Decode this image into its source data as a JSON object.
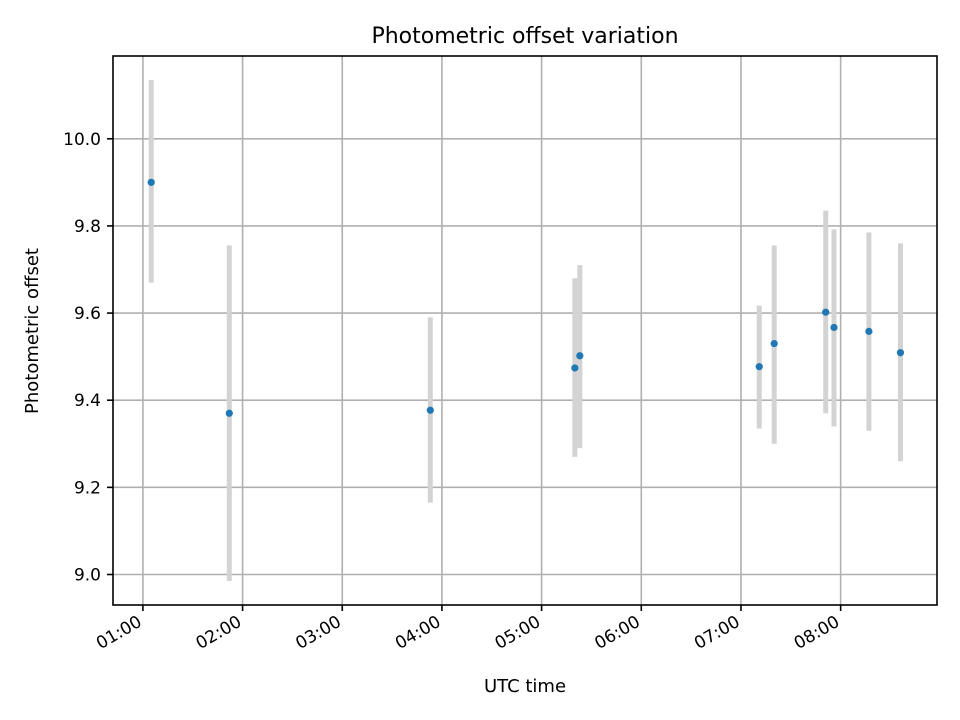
{
  "chart_data": {
    "type": "scatter",
    "title": "Photometric offset variation",
    "xlabel": "UTC time",
    "ylabel": "Photometric offset",
    "x_ticks": [
      "01:00",
      "02:00",
      "03:00",
      "04:00",
      "05:00",
      "06:00",
      "07:00",
      "08:00"
    ],
    "y_ticks": [
      "9.0",
      "9.2",
      "9.4",
      "9.6",
      "9.8",
      "10.0"
    ],
    "xlim": [
      "00:42",
      "08:58"
    ],
    "ylim": [
      8.93,
      10.19
    ],
    "grid": true,
    "error_bars": true,
    "colors": {
      "points": "#1f77b4",
      "error_bars": "#d3d3d3",
      "grid": "#b0b0b0"
    },
    "points": [
      {
        "x": "01:05",
        "y": 9.9,
        "err_low": 9.67,
        "err_high": 10.135
      },
      {
        "x": "01:52",
        "y": 9.37,
        "err_low": 8.985,
        "err_high": 9.755
      },
      {
        "x": "03:53",
        "y": 9.377,
        "err_low": 9.165,
        "err_high": 9.59
      },
      {
        "x": "05:20",
        "y": 9.474,
        "err_low": 9.27,
        "err_high": 9.68
      },
      {
        "x": "05:23",
        "y": 9.502,
        "err_low": 9.29,
        "err_high": 9.71
      },
      {
        "x": "07:11",
        "y": 9.477,
        "err_low": 9.335,
        "err_high": 9.617
      },
      {
        "x": "07:20",
        "y": 9.53,
        "err_low": 9.3,
        "err_high": 9.755
      },
      {
        "x": "07:51",
        "y": 9.602,
        "err_low": 9.37,
        "err_high": 9.835
      },
      {
        "x": "07:56",
        "y": 9.567,
        "err_low": 9.34,
        "err_high": 9.792
      },
      {
        "x": "08:17",
        "y": 9.558,
        "err_low": 9.33,
        "err_high": 9.785
      },
      {
        "x": "08:36",
        "y": 9.509,
        "err_low": 9.26,
        "err_high": 9.76
      }
    ]
  }
}
